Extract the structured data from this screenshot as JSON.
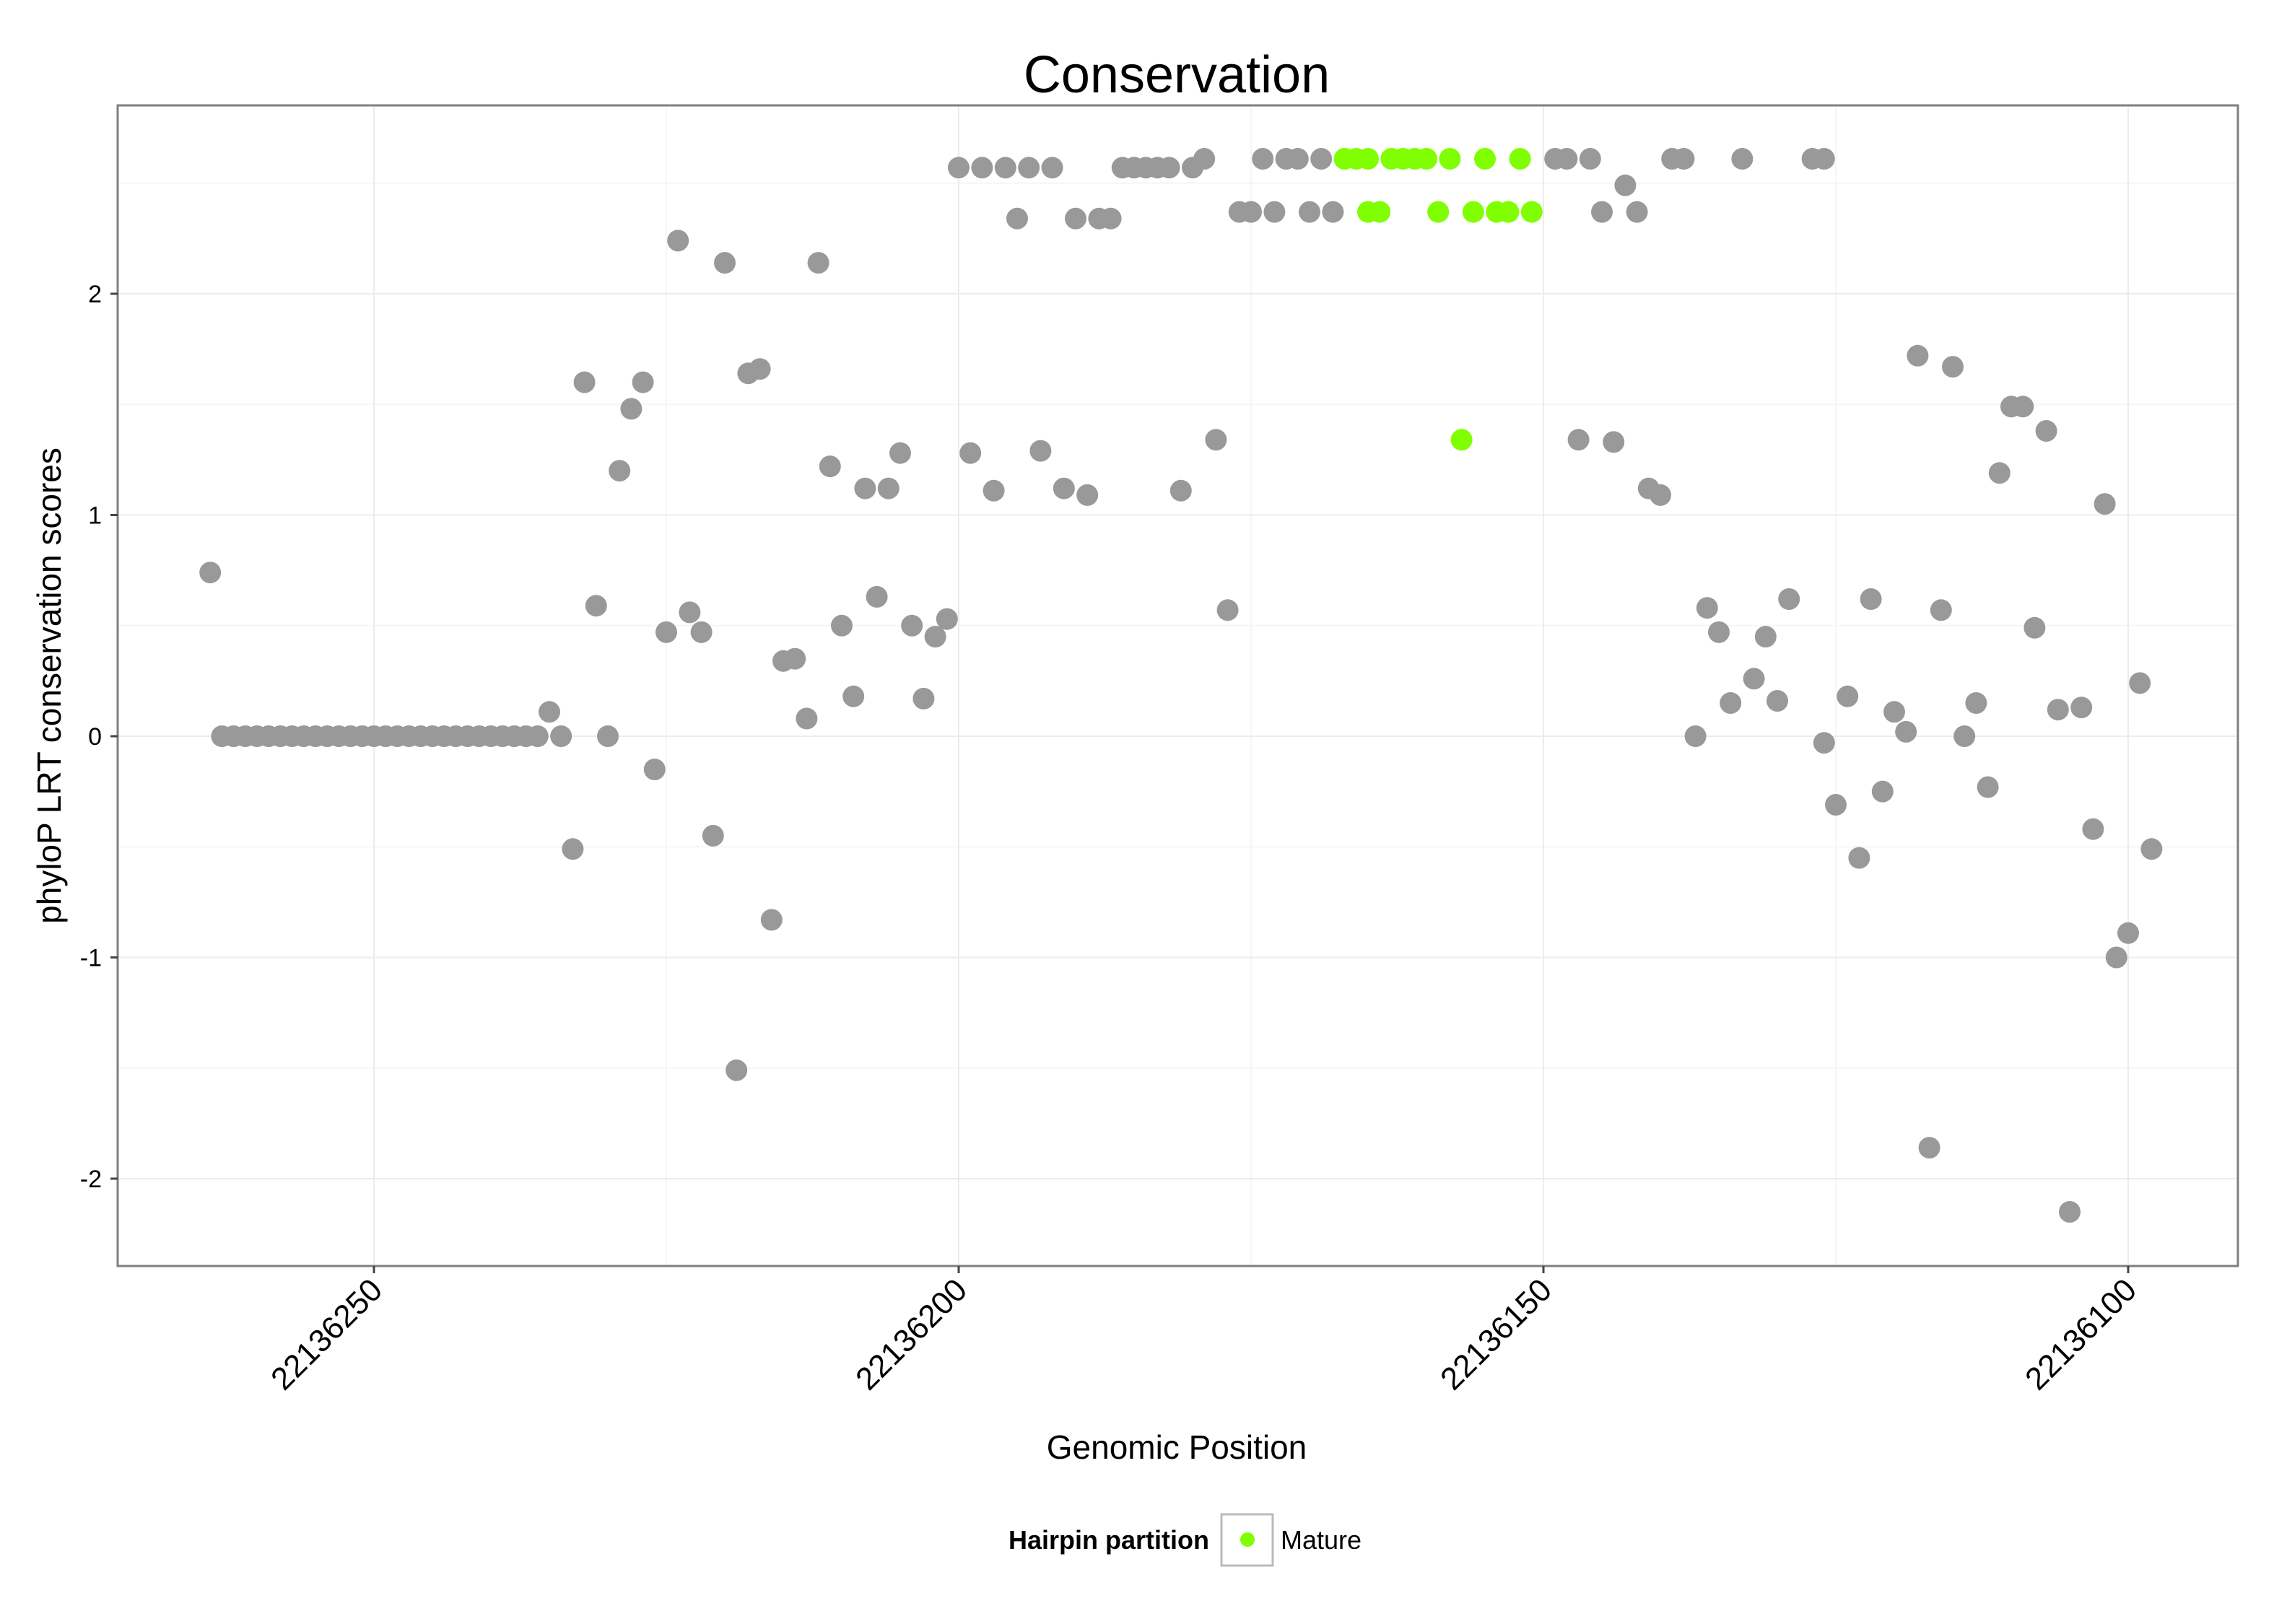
{
  "chart_data": {
    "type": "scatter",
    "title": "Conservation",
    "xlabel": "Genomic Position",
    "ylabel": "phyloP LRT conservation scores",
    "x_reversed": true,
    "xlim": [
      22136264,
      22136083
    ],
    "ylim": [
      -2.4,
      2.85
    ],
    "x_ticks": [
      22136250,
      22136200,
      22136150,
      22136100
    ],
    "x_tick_labels": [
      "22136250",
      "22136200",
      "22136150",
      "22136100"
    ],
    "y_ticks": [
      -2,
      -1,
      0,
      1,
      2
    ],
    "y_tick_labels": [
      "-2",
      "-1",
      "0",
      "1",
      "2"
    ],
    "grid": true,
    "legend": {
      "title": "Hairpin partition",
      "position": "bottom",
      "entries": [
        {
          "label": "Mature",
          "color": "#7fff00"
        }
      ]
    },
    "colors": {
      "hairpin": "#999999",
      "mature": "#7fff00"
    },
    "series": [
      {
        "name": "Hairpin",
        "color": "#999999",
        "points": [
          [
            22136264,
            0.74
          ],
          [
            22136263,
            0
          ],
          [
            22136262,
            0
          ],
          [
            22136261,
            0
          ],
          [
            22136260,
            0
          ],
          [
            22136259,
            0
          ],
          [
            22136258,
            0
          ],
          [
            22136257,
            0
          ],
          [
            22136256,
            0
          ],
          [
            22136255,
            0
          ],
          [
            22136254,
            0
          ],
          [
            22136253,
            0
          ],
          [
            22136252,
            0
          ],
          [
            22136251,
            0
          ],
          [
            22136250,
            0
          ],
          [
            22136249,
            0
          ],
          [
            22136248,
            0
          ],
          [
            22136247,
            0
          ],
          [
            22136246,
            0
          ],
          [
            22136245,
            0
          ],
          [
            22136244,
            0
          ],
          [
            22136243,
            0
          ],
          [
            22136242,
            0
          ],
          [
            22136241,
            0
          ],
          [
            22136240,
            0
          ],
          [
            22136239,
            0
          ],
          [
            22136238,
            0
          ],
          [
            22136237,
            0
          ],
          [
            22136236,
            0
          ],
          [
            22136235,
            0.11
          ],
          [
            22136234,
            0
          ],
          [
            22136233,
            -0.51
          ],
          [
            22136232,
            1.6
          ],
          [
            22136231,
            0.59
          ],
          [
            22136230,
            0
          ],
          [
            22136229,
            1.2
          ],
          [
            22136228,
            1.48
          ],
          [
            22136227,
            1.6
          ],
          [
            22136226,
            -0.15
          ],
          [
            22136225,
            0.47
          ],
          [
            22136224,
            2.24
          ],
          [
            22136223,
            0.56
          ],
          [
            22136222,
            0.47
          ],
          [
            22136221,
            -0.45
          ],
          [
            22136220,
            2.14
          ],
          [
            22136219,
            -1.51
          ],
          [
            22136218,
            1.64
          ],
          [
            22136217,
            1.66
          ],
          [
            22136216,
            -0.83
          ],
          [
            22136215,
            0.34
          ],
          [
            22136214,
            0.35
          ],
          [
            22136213,
            0.08
          ],
          [
            22136212,
            2.14
          ],
          [
            22136211,
            1.22
          ],
          [
            22136210,
            0.5
          ],
          [
            22136209,
            0.18
          ],
          [
            22136208,
            1.12
          ],
          [
            22136207,
            0.63
          ],
          [
            22136206,
            1.12
          ],
          [
            22136205,
            1.28
          ],
          [
            22136204,
            0.5
          ],
          [
            22136203,
            0.17
          ],
          [
            22136202,
            0.45
          ],
          [
            22136201,
            0.53
          ],
          [
            22136200,
            2.57
          ],
          [
            22136199,
            1.28
          ],
          [
            22136198,
            2.57
          ],
          [
            22136197,
            1.11
          ],
          [
            22136196,
            2.57
          ],
          [
            22136195,
            2.34
          ],
          [
            22136194,
            2.57
          ],
          [
            22136193,
            1.29
          ],
          [
            22136192,
            2.57
          ],
          [
            22136191,
            1.12
          ],
          [
            22136190,
            2.34
          ],
          [
            22136189,
            1.09
          ],
          [
            22136188,
            2.34
          ],
          [
            22136187,
            2.34
          ],
          [
            22136186,
            2.57
          ],
          [
            22136185,
            2.57
          ],
          [
            22136184,
            2.57
          ],
          [
            22136183,
            2.57
          ],
          [
            22136182,
            2.57
          ],
          [
            22136181,
            1.11
          ],
          [
            22136180,
            2.57
          ],
          [
            22136179,
            2.61
          ],
          [
            22136178,
            1.34
          ],
          [
            22136177,
            0.57
          ],
          [
            22136176,
            2.37
          ],
          [
            22136175,
            2.37
          ],
          [
            22136174,
            2.61
          ],
          [
            22136173,
            2.37
          ],
          [
            22136172,
            2.61
          ],
          [
            22136171,
            2.61
          ],
          [
            22136170,
            2.37
          ],
          [
            22136169,
            2.61
          ],
          [
            22136168,
            2.37
          ],
          [
            22136149,
            2.61
          ],
          [
            22136148,
            2.61
          ],
          [
            22136147,
            1.34
          ],
          [
            22136146,
            2.61
          ],
          [
            22136145,
            2.37
          ],
          [
            22136144,
            1.33
          ],
          [
            22136143,
            2.49
          ],
          [
            22136142,
            2.37
          ],
          [
            22136141,
            1.12
          ],
          [
            22136140,
            1.09
          ],
          [
            22136139,
            2.61
          ],
          [
            22136138,
            2.61
          ],
          [
            22136137,
            0
          ],
          [
            22136136,
            0.58
          ],
          [
            22136135,
            0.47
          ],
          [
            22136134,
            0.15
          ],
          [
            22136133,
            2.61
          ],
          [
            22136132,
            0.26
          ],
          [
            22136131,
            0.45
          ],
          [
            22136130,
            0.16
          ],
          [
            22136129,
            0.62
          ],
          [
            22136127,
            2.61
          ],
          [
            22136126,
            2.61
          ],
          [
            22136126,
            -0.03
          ],
          [
            22136125,
            -0.31
          ],
          [
            22136124,
            0.18
          ],
          [
            22136123,
            -0.55
          ],
          [
            22136122,
            0.62
          ],
          [
            22136121,
            -0.25
          ],
          [
            22136120,
            0.11
          ],
          [
            22136119,
            0.02
          ],
          [
            22136118,
            1.72
          ],
          [
            22136117,
            -1.86
          ],
          [
            22136116,
            0.57
          ],
          [
            22136115,
            1.67
          ],
          [
            22136114,
            0
          ],
          [
            22136113,
            0.15
          ],
          [
            22136112,
            -0.23
          ],
          [
            22136111,
            1.19
          ],
          [
            22136110,
            1.49
          ],
          [
            22136109,
            1.49
          ],
          [
            22136108,
            0.49
          ],
          [
            22136107,
            1.38
          ],
          [
            22136106,
            0.12
          ],
          [
            22136105,
            -2.15
          ],
          [
            22136104,
            0.13
          ],
          [
            22136103,
            -0.42
          ],
          [
            22136102,
            1.05
          ],
          [
            22136101,
            -1.0
          ],
          [
            22136100,
            -0.89
          ],
          [
            22136099,
            0.24
          ],
          [
            22136098,
            -0.51
          ]
        ]
      },
      {
        "name": "Mature",
        "color": "#7fff00",
        "points": [
          [
            22136167,
            2.61
          ],
          [
            22136166,
            2.61
          ],
          [
            22136165,
            2.61
          ],
          [
            22136165,
            2.37
          ],
          [
            22136164,
            2.37
          ],
          [
            22136163,
            2.61
          ],
          [
            22136162,
            2.61
          ],
          [
            22136161,
            2.61
          ],
          [
            22136160,
            2.61
          ],
          [
            22136159,
            2.37
          ],
          [
            22136158,
            2.61
          ],
          [
            22136157,
            1.34
          ],
          [
            22136156,
            2.37
          ],
          [
            22136155,
            2.61
          ],
          [
            22136154,
            2.37
          ],
          [
            22136153,
            2.37
          ],
          [
            22136152,
            2.61
          ],
          [
            22136151,
            2.37
          ]
        ]
      }
    ]
  }
}
